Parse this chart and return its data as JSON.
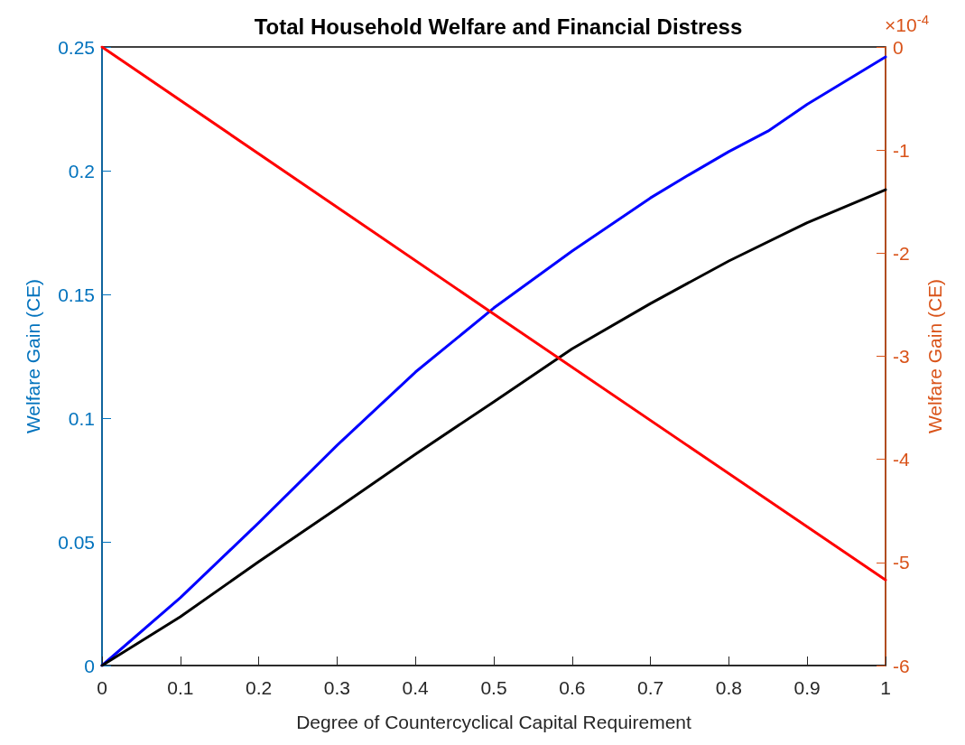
{
  "chart_data": {
    "type": "line",
    "title": "Total Household Welfare and Financial Distress",
    "xlabel": "Degree of Countercyclical Capital Requirement",
    "ylabel": "Welfare Gain (CE)",
    "y2label": "Welfare Gain (CE)",
    "annotations": [
      "×10$^{-4}$"
    ],
    "series": [
      {
        "color": "#0000ff",
        "x": [
          0,
          0.1,
          0.2,
          0.3,
          0.4,
          0.5,
          0.6,
          0.7,
          0.75,
          0.8,
          0.85,
          0.9,
          1
        ],
        "values": [
          0,
          0.0274,
          0.0577,
          0.089,
          0.1186,
          0.1445,
          0.1675,
          0.189,
          0.1985,
          0.2077,
          0.216,
          0.2268,
          0.246
        ]
      },
      {
        "color": "#000000",
        "x": [
          0,
          0.1,
          0.2,
          0.3,
          0.4,
          0.5,
          0.6,
          0.7,
          0.8,
          0.9,
          1
        ],
        "values": [
          0,
          0.0197,
          0.042,
          0.0635,
          0.0854,
          0.1066,
          0.128,
          0.1463,
          0.1635,
          0.179,
          0.1923
        ]
      },
      {
        "color": "#ff0000",
        "axis": "y2",
        "x": [
          0,
          0.5,
          1
        ],
        "values": [
          0,
          -2.59,
          -5.17
        ]
      }
    ],
    "xlim": [
      0,
      1
    ],
    "xticks": [
      0,
      0.1,
      0.2,
      0.3,
      0.4,
      0.5,
      0.6,
      0.7,
      0.8,
      0.9,
      1
    ],
    "ylim": [
      0,
      0.25
    ],
    "yticks": [
      0,
      0.05,
      0.1,
      0.15,
      0.2,
      0.25
    ],
    "y2lim": [
      -6,
      0
    ],
    "y2ticks": [
      -6,
      -5,
      -4,
      -3,
      -2,
      -1,
      0
    ],
    "grid": false,
    "marker": "none",
    "line_style": "solid"
  }
}
